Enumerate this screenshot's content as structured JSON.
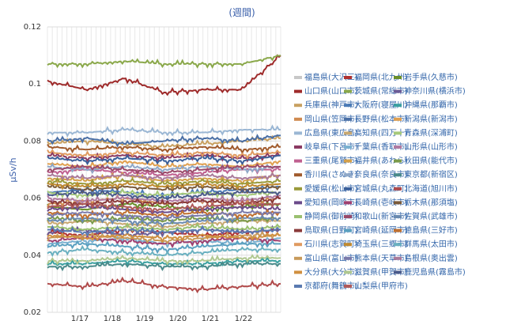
{
  "chart_data": {
    "type": "line",
    "title": "(週間)",
    "ylabel": "μSv/h",
    "xlabel": "",
    "ylim": [
      0.02,
      0.12
    ],
    "yticks": [
      "0.02",
      "0.04",
      "0.06",
      "0.08",
      "0.1",
      "0.12"
    ],
    "xticks": [
      "1/17",
      "1/18",
      "1/19",
      "1/20",
      "1/21",
      "1/22"
    ],
    "grid": true,
    "legend_position": "right",
    "series": [
      {
        "name": "福島県(大沢三)",
        "color": "#c8c8c8",
        "values": []
      },
      {
        "name": "福岡県(北九州)",
        "color": "#b03030",
        "values": [
          0.048,
          0.047,
          0.049,
          0.048,
          0.047,
          0.048,
          0.049
        ]
      },
      {
        "name": "岩手県(久慈市)",
        "color": "#6a8f2a",
        "values": [
          0.057,
          0.056,
          0.058,
          0.057,
          0.056,
          0.057,
          0.058
        ]
      },
      {
        "name": "山口県(山口市)",
        "color": "#9e2a2a",
        "values": [
          0.101,
          0.098,
          0.102,
          0.097,
          0.098,
          0.098,
          0.11
        ]
      },
      {
        "name": "茨城県(常総市)",
        "color": "#8aa84a",
        "values": [
          0.107,
          0.107,
          0.108,
          0.107,
          0.107,
          0.107,
          0.11
        ]
      },
      {
        "name": "神奈川県(横浜市)",
        "color": "#6b5b95",
        "values": [
          0.048,
          0.049,
          0.047,
          0.048,
          0.049,
          0.048,
          0.049
        ]
      },
      {
        "name": "兵庫県(神戸市)",
        "color": "#c8a060",
        "values": [
          0.079,
          0.08,
          0.079,
          0.078,
          0.079,
          0.08,
          0.081
        ]
      },
      {
        "name": "大阪府(寝屋川)",
        "color": "#4a7ab5",
        "values": [
          0.062,
          0.063,
          0.062,
          0.061,
          0.062,
          0.063,
          0.064
        ]
      },
      {
        "name": "沖縄県(那覇市)",
        "color": "#3aa0a0",
        "values": [
          0.037,
          0.037,
          0.038,
          0.037,
          0.037,
          0.038,
          0.038
        ]
      },
      {
        "name": "岡山県(笠岡市)",
        "color": "#d08a50",
        "values": [
          0.058,
          0.059,
          0.06,
          0.058,
          0.059,
          0.058,
          0.06
        ]
      },
      {
        "name": "長野県(松本市)",
        "color": "#4a6fa5",
        "values": [
          0.08,
          0.081,
          0.079,
          0.08,
          0.081,
          0.08,
          0.082
        ]
      },
      {
        "name": "新潟県(新潟市)",
        "color": "#e0a050",
        "values": [
          0.072,
          0.071,
          0.073,
          0.071,
          0.072,
          0.071,
          0.073
        ]
      },
      {
        "name": "広島県(東広島)",
        "color": "#9bb7d4",
        "values": [
          0.083,
          0.083,
          0.084,
          0.083,
          0.083,
          0.084,
          0.084
        ]
      },
      {
        "name": "高知県(四万十)",
        "color": "#c8a870",
        "values": [
          0.051,
          0.052,
          0.051,
          0.05,
          0.051,
          0.052,
          0.052
        ]
      },
      {
        "name": "青森県(深浦町)",
        "color": "#a6c97a",
        "values": [
          0.062,
          0.061,
          0.062,
          0.061,
          0.062,
          0.061,
          0.062
        ]
      },
      {
        "name": "岐阜県(下呂市)",
        "color": "#8b3a62",
        "values": [
          0.075,
          0.074,
          0.075,
          0.074,
          0.075,
          0.074,
          0.075
        ]
      },
      {
        "name": "千葉県(香取市)",
        "color": "#7ab0d0",
        "values": [
          0.044,
          0.045,
          0.046,
          0.044,
          0.045,
          0.044,
          0.046
        ]
      },
      {
        "name": "山形県(山形市)",
        "color": "#b07aa1",
        "values": [
          0.06,
          0.059,
          0.06,
          0.059,
          0.06,
          0.059,
          0.061
        ]
      },
      {
        "name": "三重県(尾鷲市)",
        "color": "#c06090",
        "values": [
          0.069,
          0.07,
          0.069,
          0.068,
          0.069,
          0.07,
          0.07
        ]
      },
      {
        "name": "福井県(あわら)",
        "color": "#d4a04a",
        "values": [
          0.067,
          0.066,
          0.068,
          0.066,
          0.067,
          0.066,
          0.068
        ]
      },
      {
        "name": "秋田県(能代市)",
        "color": "#7a9a4a",
        "values": [
          0.053,
          0.052,
          0.053,
          0.052,
          0.053,
          0.052,
          0.053
        ]
      },
      {
        "name": "香川県(さぬき)",
        "color": "#a05a2c",
        "values": [
          0.078,
          0.077,
          0.078,
          0.077,
          0.078,
          0.077,
          0.078
        ]
      },
      {
        "name": "奈良県(奈良市)",
        "color": "#8fa8c8",
        "values": [
          0.071,
          0.07,
          0.071,
          0.07,
          0.071,
          0.07,
          0.071
        ]
      },
      {
        "name": "東京都(新宿区)",
        "color": "#4a8a8a",
        "values": [
          0.036,
          0.036,
          0.037,
          0.036,
          0.036,
          0.037,
          0.037
        ]
      },
      {
        "name": "愛媛県(松山市)",
        "color": "#9a9a3a",
        "values": [
          0.066,
          0.065,
          0.066,
          0.065,
          0.066,
          0.065,
          0.066
        ]
      },
      {
        "name": "宮城県(丸森町)",
        "color": "#3a5f9a",
        "values": [
          0.074,
          0.073,
          0.074,
          0.073,
          0.074,
          0.073,
          0.075
        ]
      },
      {
        "name": "北海道(旭川市)",
        "color": "#b04a4a",
        "values": [
          0.03,
          0.029,
          0.031,
          0.029,
          0.028,
          0.029,
          0.03
        ]
      },
      {
        "name": "愛知県(岡崎市)",
        "color": "#6a4a8a",
        "values": [
          0.056,
          0.057,
          0.056,
          0.055,
          0.056,
          0.057,
          0.056
        ]
      },
      {
        "name": "長崎県(壱岐市)",
        "color": "#a04070",
        "values": [
          0.045,
          0.046,
          0.045,
          0.044,
          0.045,
          0.046,
          0.045
        ]
      },
      {
        "name": "栃木県(那須塩)",
        "color": "#7a5a3a",
        "values": [
          0.064,
          0.063,
          0.064,
          0.063,
          0.064,
          0.063,
          0.064
        ]
      },
      {
        "name": "静岡県(御前崎)",
        "color": "#9ac070",
        "values": [
          0.05,
          0.049,
          0.05,
          0.049,
          0.05,
          0.049,
          0.05
        ]
      },
      {
        "name": "和歌山(新宮市)",
        "color": "#9a4a6a",
        "values": [
          0.07,
          0.071,
          0.07,
          0.069,
          0.07,
          0.071,
          0.071
        ]
      },
      {
        "name": "佐賀県(武雄市)",
        "color": "#6a8ab0",
        "values": [
          0.052,
          0.053,
          0.052,
          0.051,
          0.052,
          0.053,
          0.053
        ]
      },
      {
        "name": "鳥取県(日野町)",
        "color": "#8a3a3a",
        "values": [
          0.059,
          0.058,
          0.059,
          0.058,
          0.059,
          0.058,
          0.06
        ]
      },
      {
        "name": "宮崎県(延岡市)",
        "color": "#5aa0c0",
        "values": [
          0.043,
          0.044,
          0.043,
          0.042,
          0.043,
          0.044,
          0.044
        ]
      },
      {
        "name": "徳島県(三好市)",
        "color": "#c07030",
        "values": [
          0.055,
          0.054,
          0.055,
          0.054,
          0.055,
          0.054,
          0.055
        ]
      },
      {
        "name": "石川県(志賀町)",
        "color": "#e09a60",
        "values": [
          0.076,
          0.075,
          0.076,
          0.075,
          0.076,
          0.075,
          0.076
        ]
      },
      {
        "name": "埼玉県(三郷市)",
        "color": "#c08a30",
        "values": [
          0.065,
          0.064,
          0.065,
          0.064,
          0.065,
          0.064,
          0.065
        ]
      },
      {
        "name": "群馬県(太田市)",
        "color": "#6ab0c0",
        "values": [
          0.041,
          0.042,
          0.041,
          0.04,
          0.041,
          0.042,
          0.042
        ]
      },
      {
        "name": "富山県(富山市)",
        "color": "#c89a5a",
        "values": [
          0.046,
          0.047,
          0.046,
          0.045,
          0.046,
          0.047,
          0.047
        ]
      },
      {
        "name": "熊本県(天草市)",
        "color": "#7a7aaa",
        "values": [
          0.054,
          0.055,
          0.054,
          0.053,
          0.054,
          0.055,
          0.055
        ]
      },
      {
        "name": "島根県(奥出雲)",
        "color": "#aa7a9a",
        "values": [
          0.068,
          0.067,
          0.068,
          0.067,
          0.068,
          0.067,
          0.068
        ]
      },
      {
        "name": "大分県(大分市)",
        "color": "#d09040",
        "values": [
          0.047,
          0.046,
          0.047,
          0.046,
          0.047,
          0.046,
          0.047
        ]
      },
      {
        "name": "滋賀県(甲賀市)",
        "color": "#b0c890",
        "values": [
          0.038,
          0.038,
          0.039,
          0.038,
          0.038,
          0.039,
          0.039
        ]
      },
      {
        "name": "鹿児島県(霧島市)",
        "color": "#4a5a8a",
        "values": [
          0.061,
          0.062,
          0.061,
          0.06,
          0.061,
          0.062,
          0.062
        ]
      },
      {
        "name": "京都府(舞鶴市)",
        "color": "#5a7ab0",
        "values": [
          0.049,
          0.048,
          0.049,
          0.048,
          0.049,
          0.048,
          0.049
        ]
      },
      {
        "name": "山梨県(甲府市)",
        "color": "#b05a5a",
        "values": [
          0.057,
          0.058,
          0.057,
          0.056,
          0.057,
          0.058,
          0.058
        ]
      }
    ]
  }
}
